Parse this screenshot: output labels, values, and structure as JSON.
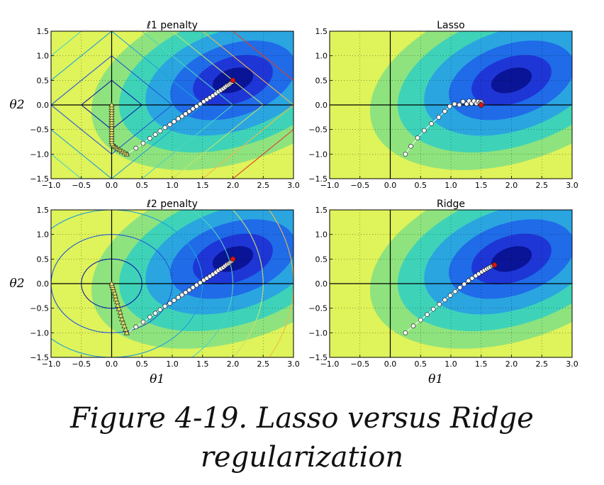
{
  "figure": {
    "caption_line1": "Figure 4-19. Lasso versus Ridge",
    "caption_line2": "regularization",
    "xlabel": "θ1",
    "ylabel": "θ2"
  },
  "chart_data": [
    {
      "type": "line",
      "title": "ℓ1 penalty",
      "xlabel": "",
      "ylabel": "θ2",
      "xlim": [
        -1.0,
        3.0
      ],
      "ylim": [
        -1.5,
        1.5
      ],
      "xticks": [
        "−1.0",
        "−0.5",
        "0.0",
        "0.5",
        "1.0",
        "1.5",
        "2.0",
        "2.5",
        "3.0"
      ],
      "yticks": [
        "1.5",
        "1.0",
        "0.5",
        "0.0",
        "−0.5",
        "−1.0",
        "−1.5"
      ],
      "grid": true,
      "contours": {
        "kind": "l1",
        "levels": [
          0.5,
          1.0,
          1.5,
          2.0,
          2.5,
          3.0,
          3.5
        ]
      },
      "series": [
        {
          "marker": "circle",
          "color": "#ffffff",
          "markersize": 6,
          "points": [
            [
              0.25,
              -1.0
            ],
            [
              0.4,
              -0.88
            ],
            [
              0.52,
              -0.78
            ],
            [
              0.63,
              -0.68
            ],
            [
              0.72,
              -0.6
            ],
            [
              0.8,
              -0.53
            ],
            [
              0.88,
              -0.46
            ],
            [
              0.96,
              -0.4
            ],
            [
              1.03,
              -0.34
            ],
            [
              1.1,
              -0.28
            ],
            [
              1.16,
              -0.23
            ],
            [
              1.22,
              -0.18
            ],
            [
              1.28,
              -0.13
            ],
            [
              1.34,
              -0.08
            ],
            [
              1.4,
              -0.03
            ],
            [
              1.46,
              0.02
            ],
            [
              1.52,
              0.07
            ],
            [
              1.57,
              0.11
            ],
            [
              1.62,
              0.15
            ],
            [
              1.67,
              0.19
            ],
            [
              1.72,
              0.23
            ],
            [
              1.76,
              0.27
            ],
            [
              1.8,
              0.3
            ],
            [
              1.84,
              0.33
            ],
            [
              1.87,
              0.36
            ],
            [
              1.9,
              0.39
            ],
            [
              1.93,
              0.41
            ],
            [
              1.95,
              0.43
            ],
            [
              1.97,
              0.45
            ],
            [
              1.99,
              0.47
            ]
          ],
          "end": [
            2.0,
            0.5
          ]
        },
        {
          "marker": "triangle",
          "color": "#e8e060",
          "markersize": 6,
          "points": [
            [
              0.25,
              -1.0
            ],
            [
              0.21,
              -0.97
            ],
            [
              0.17,
              -0.94
            ],
            [
              0.13,
              -0.91
            ],
            [
              0.09,
              -0.88
            ],
            [
              0.06,
              -0.85
            ],
            [
              0.03,
              -0.82
            ],
            [
              0.01,
              -0.79
            ],
            [
              0.0,
              -0.75
            ],
            [
              0.0,
              -0.7
            ],
            [
              0.0,
              -0.65
            ],
            [
              0.0,
              -0.6
            ],
            [
              0.0,
              -0.55
            ],
            [
              0.0,
              -0.5
            ],
            [
              0.0,
              -0.45
            ],
            [
              0.0,
              -0.4
            ],
            [
              0.0,
              -0.35
            ],
            [
              0.0,
              -0.3
            ],
            [
              0.0,
              -0.25
            ],
            [
              0.0,
              -0.2
            ],
            [
              0.0,
              -0.15
            ],
            [
              0.0,
              -0.1
            ],
            [
              0.0,
              -0.05
            ],
            [
              0.0,
              0.0
            ]
          ]
        }
      ]
    },
    {
      "type": "line",
      "title": "Lasso",
      "xlabel": "",
      "ylabel": "",
      "xlim": [
        -1.0,
        3.0
      ],
      "ylim": [
        -1.5,
        1.5
      ],
      "xticks": [
        "−1.0",
        "−0.5",
        "0.0",
        "0.5",
        "1.0",
        "1.5",
        "2.0",
        "2.5",
        "3.0"
      ],
      "yticks": [
        "1.5",
        "1.0",
        "0.5",
        "0.0",
        "−0.5",
        "−1.0",
        "−1.5"
      ],
      "grid": true,
      "contours": {
        "kind": "none"
      },
      "series": [
        {
          "marker": "circle",
          "color": "#ffffff",
          "markersize": 6,
          "points": [
            [
              0.25,
              -1.0
            ],
            [
              0.34,
              -0.84
            ],
            [
              0.45,
              -0.67
            ],
            [
              0.56,
              -0.52
            ],
            [
              0.68,
              -0.38
            ],
            [
              0.8,
              -0.25
            ],
            [
              0.9,
              -0.13
            ],
            [
              0.98,
              -0.03
            ],
            [
              1.06,
              0.02
            ],
            [
              1.14,
              0.0
            ],
            [
              1.2,
              0.07
            ],
            [
              1.26,
              0.02
            ],
            [
              1.3,
              0.08
            ],
            [
              1.34,
              0.03
            ],
            [
              1.38,
              0.08
            ],
            [
              1.42,
              0.03
            ],
            [
              1.45,
              0.07
            ],
            [
              1.48,
              0.04
            ],
            [
              1.5,
              0.06
            ],
            [
              1.51,
              0.03
            ]
          ],
          "end": [
            1.5,
            0.0
          ]
        }
      ]
    },
    {
      "type": "line",
      "title": "ℓ2 penalty",
      "xlabel": "θ1",
      "ylabel": "θ2",
      "xlim": [
        -1.0,
        3.0
      ],
      "ylim": [
        -1.5,
        1.5
      ],
      "xticks": [
        "−1.0",
        "−0.5",
        "0.0",
        "0.5",
        "1.0",
        "1.5",
        "2.0",
        "2.5",
        "3.0"
      ],
      "yticks": [
        "1.5",
        "1.0",
        "0.5",
        "0.0",
        "−0.5",
        "−1.0",
        "−1.5"
      ],
      "grid": true,
      "contours": {
        "kind": "l2",
        "levels": [
          0.5,
          1.0,
          1.5,
          2.0,
          2.5,
          3.0,
          3.5
        ]
      },
      "series": [
        {
          "marker": "circle",
          "color": "#ffffff",
          "markersize": 6,
          "points": [
            [
              0.25,
              -1.0
            ],
            [
              0.4,
              -0.88
            ],
            [
              0.52,
              -0.78
            ],
            [
              0.63,
              -0.68
            ],
            [
              0.72,
              -0.6
            ],
            [
              0.8,
              -0.53
            ],
            [
              0.88,
              -0.46
            ],
            [
              0.96,
              -0.4
            ],
            [
              1.03,
              -0.34
            ],
            [
              1.1,
              -0.28
            ],
            [
              1.16,
              -0.23
            ],
            [
              1.22,
              -0.18
            ],
            [
              1.28,
              -0.13
            ],
            [
              1.34,
              -0.08
            ],
            [
              1.4,
              -0.03
            ],
            [
              1.46,
              0.02
            ],
            [
              1.52,
              0.07
            ],
            [
              1.57,
              0.11
            ],
            [
              1.62,
              0.15
            ],
            [
              1.67,
              0.19
            ],
            [
              1.72,
              0.23
            ],
            [
              1.76,
              0.27
            ],
            [
              1.8,
              0.3
            ],
            [
              1.84,
              0.33
            ],
            [
              1.87,
              0.36
            ],
            [
              1.9,
              0.39
            ],
            [
              1.93,
              0.41
            ],
            [
              1.95,
              0.43
            ],
            [
              1.97,
              0.45
            ],
            [
              1.99,
              0.47
            ]
          ],
          "end": [
            2.0,
            0.5
          ]
        },
        {
          "marker": "triangle",
          "color": "#e8e060",
          "markersize": 6,
          "points": [
            [
              0.25,
              -1.0
            ],
            [
              0.23,
              -0.93
            ],
            [
              0.21,
              -0.86
            ],
            [
              0.19,
              -0.79
            ],
            [
              0.17,
              -0.72
            ],
            [
              0.15,
              -0.65
            ],
            [
              0.14,
              -0.58
            ],
            [
              0.12,
              -0.51
            ],
            [
              0.1,
              -0.44
            ],
            [
              0.09,
              -0.37
            ],
            [
              0.07,
              -0.31
            ],
            [
              0.06,
              -0.25
            ],
            [
              0.05,
              -0.19
            ],
            [
              0.03,
              -0.13
            ],
            [
              0.02,
              -0.08
            ],
            [
              0.01,
              -0.04
            ],
            [
              0.0,
              0.0
            ]
          ]
        }
      ]
    },
    {
      "type": "line",
      "title": "Ridge",
      "xlabel": "θ1",
      "ylabel": "",
      "xlim": [
        -1.0,
        3.0
      ],
      "ylim": [
        -1.5,
        1.5
      ],
      "xticks": [
        "−1.0",
        "−0.5",
        "0.0",
        "0.5",
        "1.0",
        "1.5",
        "2.0",
        "2.5",
        "3.0"
      ],
      "yticks": [
        "1.5",
        "1.0",
        "0.5",
        "0.0",
        "−0.5",
        "−1.0",
        "−1.5"
      ],
      "grid": true,
      "contours": {
        "kind": "none"
      },
      "series": [
        {
          "marker": "circle",
          "color": "#ffffff",
          "markersize": 6,
          "points": [
            [
              0.25,
              -1.0
            ],
            [
              0.38,
              -0.86
            ],
            [
              0.5,
              -0.74
            ],
            [
              0.61,
              -0.63
            ],
            [
              0.71,
              -0.52
            ],
            [
              0.81,
              -0.42
            ],
            [
              0.9,
              -0.33
            ],
            [
              0.99,
              -0.24
            ],
            [
              1.07,
              -0.16
            ],
            [
              1.15,
              -0.08
            ],
            [
              1.22,
              -0.01
            ],
            [
              1.29,
              0.06
            ],
            [
              1.35,
              0.11
            ],
            [
              1.41,
              0.16
            ],
            [
              1.46,
              0.2
            ],
            [
              1.51,
              0.24
            ],
            [
              1.55,
              0.27
            ],
            [
              1.59,
              0.3
            ],
            [
              1.62,
              0.32
            ],
            [
              1.65,
              0.34
            ],
            [
              1.68,
              0.36
            ],
            [
              1.7,
              0.37
            ],
            [
              1.72,
              0.38
            ]
          ],
          "end": [
            1.72,
            0.38
          ]
        }
      ]
    }
  ],
  "background": {
    "colormap": [
      "#0a1496",
      "#1f36d6",
      "#1f6be8",
      "#2aa5e0",
      "#3ed3b8",
      "#8ee37e",
      "#dff35a"
    ],
    "contour_colors": [
      "#0b1fa8",
      "#2257d8",
      "#1fa0d8",
      "#4fd3c0",
      "#c5e36a",
      "#f2b84a",
      "#e0402a"
    ],
    "optimum_color": "#e01010"
  }
}
